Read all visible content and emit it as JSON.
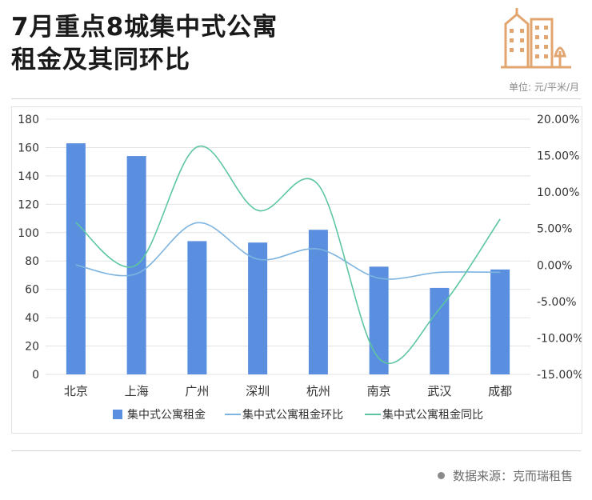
{
  "title_line1": "7月重点8城集中式公寓",
  "title_line2": "租金及其同环比",
  "unit": "单位: 元/平米/月",
  "source": "数据来源：克而瑞租售",
  "colors": {
    "bar": "#5a8fe0",
    "mom": "#7eb4e0",
    "yoy": "#5dc6a0",
    "grid": "#e3e3e3",
    "logo": "#e2a56f"
  },
  "chart_data": {
    "type": "bar",
    "categories": [
      "北京",
      "上海",
      "广州",
      "深圳",
      "杭州",
      "南京",
      "武汉",
      "成都"
    ],
    "series": [
      {
        "name": "集中式公寓租金",
        "type": "bar",
        "axis": "left",
        "values": [
          163,
          154,
          94,
          93,
          102,
          76,
          61,
          74
        ]
      },
      {
        "name": "集中式公寓租金环比",
        "type": "line",
        "axis": "right",
        "values": [
          0.0,
          -1.2,
          5.8,
          0.8,
          2.2,
          -1.8,
          -1.0,
          -1.0
        ]
      },
      {
        "name": "集中式公寓租金同比",
        "type": "line",
        "axis": "right",
        "values": [
          5.8,
          0.0,
          16.2,
          7.5,
          11.0,
          -12.8,
          -6.0,
          6.3
        ]
      }
    ],
    "y_left": {
      "ylim": [
        0,
        180
      ],
      "ticks": [
        "0",
        "20",
        "40",
        "60",
        "80",
        "100",
        "120",
        "140",
        "160",
        "180"
      ]
    },
    "y_right": {
      "ylim": [
        -15,
        20
      ],
      "ticks": [
        "-15.00%",
        "-10.00%",
        "-5.00%",
        "0.00%",
        "5.00%",
        "10.00%",
        "15.00%",
        "20.00%"
      ]
    },
    "grid": true,
    "legend_position": "bottom"
  }
}
